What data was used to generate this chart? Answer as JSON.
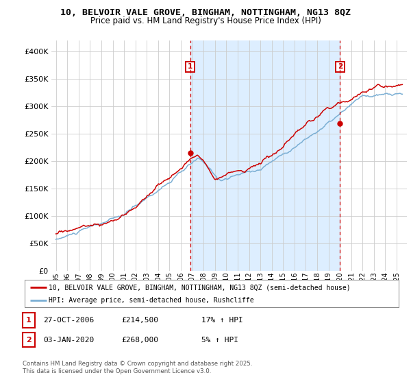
{
  "title": "10, BELVOIR VALE GROVE, BINGHAM, NOTTINGHAM, NG13 8QZ",
  "subtitle": "Price paid vs. HM Land Registry's House Price Index (HPI)",
  "legend_line1": "10, BELVOIR VALE GROVE, BINGHAM, NOTTINGHAM, NG13 8QZ (semi-detached house)",
  "legend_line2": "HPI: Average price, semi-detached house, Rushcliffe",
  "annotation1_date": "27-OCT-2006",
  "annotation1_price": "£214,500",
  "annotation1_hpi": "17% ↑ HPI",
  "annotation2_date": "03-JAN-2020",
  "annotation2_price": "£268,000",
  "annotation2_hpi": "5% ↑ HPI",
  "footer": "Contains HM Land Registry data © Crown copyright and database right 2025.\nThis data is licensed under the Open Government Licence v3.0.",
  "red_color": "#cc0000",
  "blue_color": "#7bafd4",
  "shade_color": "#ddeeff",
  "annotation_color": "#cc0000",
  "background_color": "#ffffff",
  "ylim": [
    0,
    420000
  ],
  "yticks": [
    0,
    50000,
    100000,
    150000,
    200000,
    250000,
    300000,
    350000,
    400000
  ],
  "sale1_x": 2006.82,
  "sale1_y": 214500,
  "sale2_x": 2020.01,
  "sale2_y": 268000,
  "xlim_left": 1994.6,
  "xlim_right": 2025.9
}
